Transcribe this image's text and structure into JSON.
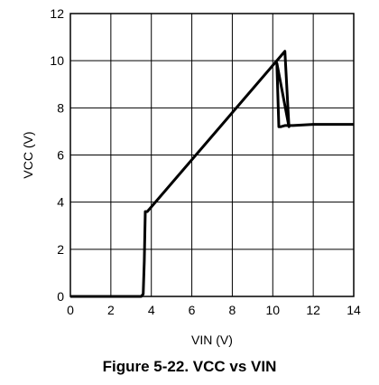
{
  "caption": "Figure 5-22. VCC vs VIN",
  "chart_data": {
    "type": "line",
    "xlabel": "VIN (V)",
    "ylabel": "VCC (V)",
    "xlim": [
      0,
      14
    ],
    "ylim": [
      0,
      12
    ],
    "xticks": [
      "0",
      "2",
      "4",
      "6",
      "8",
      "10",
      "12",
      "14"
    ],
    "yticks": [
      "0",
      "2",
      "4",
      "6",
      "8",
      "10",
      "12"
    ],
    "grid": true,
    "legend": "none",
    "line_color": "#000000",
    "series": [
      {
        "x": [
          0,
          3.5,
          3.6,
          3.65,
          3.7,
          3.8,
          3.9,
          10.0,
          10.1,
          10.4,
          10.6,
          10.8,
          10.2,
          10.3,
          10.4,
          10.6,
          11.0,
          12.0,
          14.0
        ],
        "y": [
          0,
          0,
          0.1,
          1.5,
          3.6,
          3.6,
          3.7,
          9.8,
          9.9,
          10.2,
          10.4,
          7.2,
          9.9,
          7.2,
          7.2,
          7.25,
          7.25,
          7.3,
          7.3
        ]
      }
    ]
  }
}
